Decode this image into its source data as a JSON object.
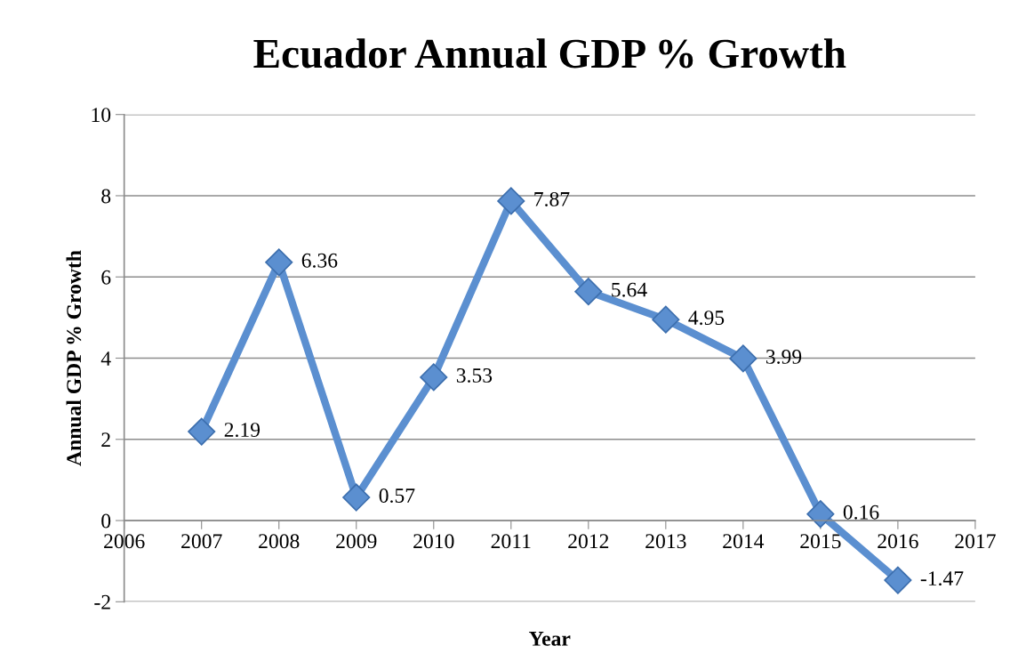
{
  "chart_data": {
    "type": "line",
    "title": "Ecuador Annual GDP % Growth",
    "xlabel": "Year",
    "ylabel": "Annual GDP % Growth",
    "x": [
      2007,
      2008,
      2009,
      2010,
      2011,
      2012,
      2013,
      2014,
      2015,
      2016
    ],
    "series": [
      {
        "color": "#5b8fd0",
        "values": [
          2.19,
          6.36,
          0.57,
          3.53,
          7.87,
          5.64,
          4.95,
          3.99,
          0.16,
          -1.47
        ]
      }
    ],
    "xlim": [
      2006,
      2017
    ],
    "xticks": [
      2006,
      2007,
      2008,
      2009,
      2010,
      2011,
      2012,
      2013,
      2014,
      2015,
      2016,
      2017
    ],
    "ylim": [
      -2,
      10
    ],
    "yticks": [
      -2,
      0,
      2,
      4,
      6,
      8,
      10
    ],
    "grid": "y",
    "marker": "diamond",
    "line_style": "solid",
    "data_labels": true
  }
}
